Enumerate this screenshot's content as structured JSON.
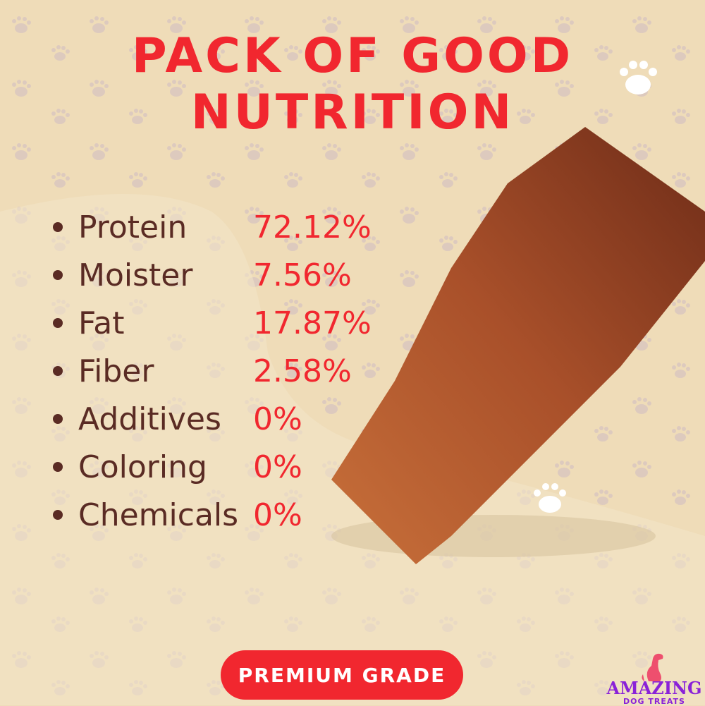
{
  "title": {
    "line1": "PACK OF GOOD",
    "line2": "NUTRITION"
  },
  "nutrition": [
    {
      "label": "Protein",
      "value": "72.12%"
    },
    {
      "label": "Moister",
      "value": "7.56%"
    },
    {
      "label": "Fat",
      "value": "17.87%"
    },
    {
      "label": "Fiber",
      "value": "2.58%"
    },
    {
      "label": "Additives",
      "value": "0%"
    },
    {
      "label": "Coloring",
      "value": "0%"
    },
    {
      "label": "Chemicals",
      "value": "0%"
    }
  ],
  "badge": {
    "label": "PREMIUM GRADE"
  },
  "logo": {
    "line1": "AMAZING",
    "line2": "DOG TREATS",
    "icon": "dog-icon"
  },
  "colors": {
    "accent": "#f1272f",
    "text": "#5a2b24",
    "background": "#efdcb8",
    "logo": "#8a22d8"
  }
}
